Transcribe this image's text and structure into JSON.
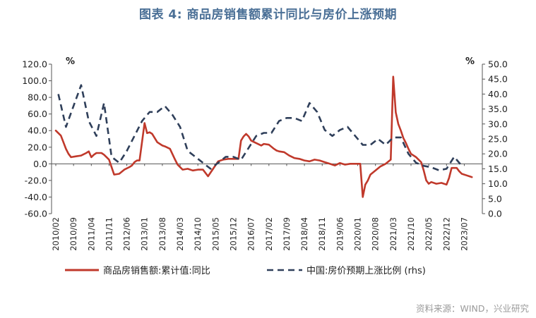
{
  "figure": {
    "title": "图表 4:  商品房销售额累计同比与房价上涨预期",
    "source": "资料来源：WIND，兴业研究"
  },
  "chart_data": {
    "type": "line",
    "left_axis": {
      "unit": "%",
      "ylim": [
        -60,
        120
      ],
      "ticks": [
        "-60.0",
        "-40.0",
        "-20.0",
        "0.0",
        "20.0",
        "40.0",
        "60.0",
        "80.0",
        "100.0",
        "120.0"
      ]
    },
    "right_axis": {
      "unit": "%",
      "ylim": [
        0,
        50
      ],
      "ticks": [
        "0.0",
        "5.0",
        "10.0",
        "15.0",
        "20.0",
        "25.0",
        "30.0",
        "35.0",
        "40.0",
        "45.0",
        "50.0"
      ]
    },
    "x_ticks": [
      "2010/02",
      "2010/09",
      "2011/04",
      "2011/11",
      "2012/06",
      "2013/01",
      "2013/08",
      "2014/03",
      "2014/10",
      "2015/05",
      "2015/12",
      "2016/07",
      "2017/02",
      "2017/09",
      "2018/04",
      "2018/11",
      "2019/06",
      "2020/01",
      "2020/08",
      "2021/03",
      "2021/10",
      "2022/05",
      "2022/12",
      "2023/07"
    ],
    "grid": false,
    "legend_position": "bottom",
    "series": [
      {
        "name": "商品房销售额:累计值:同比",
        "axis": "left",
        "color": "#c0392b",
        "style": "solid",
        "points": [
          [
            "2010/02",
            40
          ],
          [
            "2010/04",
            34
          ],
          [
            "2010/05",
            26
          ],
          [
            "2010/06",
            18
          ],
          [
            "2010/07",
            12
          ],
          [
            "2010/08",
            8
          ],
          [
            "2010/10",
            9
          ],
          [
            "2010/12",
            10
          ],
          [
            "2011/02",
            13
          ],
          [
            "2011/03",
            15
          ],
          [
            "2011/04",
            8
          ],
          [
            "2011/05",
            11
          ],
          [
            "2011/06",
            13
          ],
          [
            "2011/08",
            13
          ],
          [
            "2011/09",
            11
          ],
          [
            "2011/10",
            8
          ],
          [
            "2011/11",
            5
          ],
          [
            "2012/01",
            -13
          ],
          [
            "2012/03",
            -12
          ],
          [
            "2012/05",
            -7
          ],
          [
            "2012/07",
            -4
          ],
          [
            "2012/08",
            -2
          ],
          [
            "2012/09",
            2
          ],
          [
            "2012/10",
            4
          ],
          [
            "2012/11",
            4
          ],
          [
            "2013/01",
            49
          ],
          [
            "2013/02",
            37
          ],
          [
            "2013/03",
            38
          ],
          [
            "2013/04",
            36
          ],
          [
            "2013/05",
            31
          ],
          [
            "2013/06",
            26
          ],
          [
            "2013/08",
            22
          ],
          [
            "2013/09",
            21
          ],
          [
            "2013/11",
            18
          ],
          [
            "2014/01",
            5
          ],
          [
            "2014/02",
            -1
          ],
          [
            "2014/04",
            -7
          ],
          [
            "2014/06",
            -6
          ],
          [
            "2014/08",
            -8
          ],
          [
            "2014/10",
            -7
          ],
          [
            "2014/12",
            -7
          ],
          [
            "2015/02",
            -15
          ],
          [
            "2015/04",
            -6
          ],
          [
            "2015/06",
            3
          ],
          [
            "2015/08",
            5
          ],
          [
            "2015/10",
            6
          ],
          [
            "2015/12",
            6
          ],
          [
            "2016/02",
            6
          ],
          [
            "2016/03",
            28
          ],
          [
            "2016/04",
            33
          ],
          [
            "2016/05",
            36
          ],
          [
            "2016/06",
            33
          ],
          [
            "2016/07",
            28
          ],
          [
            "2016/09",
            25
          ],
          [
            "2016/11",
            22
          ],
          [
            "2016/12",
            24
          ],
          [
            "2017/02",
            23
          ],
          [
            "2017/04",
            18
          ],
          [
            "2017/05",
            16
          ],
          [
            "2017/06",
            15
          ],
          [
            "2017/08",
            14
          ],
          [
            "2017/10",
            10
          ],
          [
            "2017/12",
            7
          ],
          [
            "2018/02",
            6
          ],
          [
            "2018/04",
            4
          ],
          [
            "2018/06",
            3
          ],
          [
            "2018/08",
            5
          ],
          [
            "2018/10",
            4
          ],
          [
            "2018/12",
            2
          ],
          [
            "2019/02",
            0
          ],
          [
            "2019/04",
            -2
          ],
          [
            "2019/06",
            1
          ],
          [
            "2019/08",
            -1
          ],
          [
            "2019/10",
            0
          ],
          [
            "2019/12",
            0
          ],
          [
            "2020/02",
            0
          ],
          [
            "2020/03",
            -40
          ],
          [
            "2020/04",
            -25
          ],
          [
            "2020/05",
            -20
          ],
          [
            "2020/06",
            -13
          ],
          [
            "2020/08",
            -8
          ],
          [
            "2020/10",
            -3
          ],
          [
            "2020/12",
            0
          ],
          [
            "2021/02",
            5
          ],
          [
            "2021/03",
            105
          ],
          [
            "2021/04",
            62
          ],
          [
            "2021/05",
            48
          ],
          [
            "2021/06",
            40
          ],
          [
            "2021/07",
            31
          ],
          [
            "2021/08",
            25
          ],
          [
            "2021/09",
            18
          ],
          [
            "2021/10",
            12
          ],
          [
            "2021/12",
            8
          ],
          [
            "2022/02",
            2
          ],
          [
            "2022/03",
            -8
          ],
          [
            "2022/04",
            -20
          ],
          [
            "2022/05",
            -24
          ],
          [
            "2022/06",
            -22
          ],
          [
            "2022/08",
            -24
          ],
          [
            "2022/10",
            -23
          ],
          [
            "2022/12",
            -25
          ],
          [
            "2023/01",
            -17
          ],
          [
            "2023/02",
            -5
          ],
          [
            "2023/04",
            -5
          ],
          [
            "2023/05",
            -9
          ],
          [
            "2023/06",
            -12
          ],
          [
            "2023/08",
            -14
          ],
          [
            "2023/09",
            -15
          ],
          [
            "2023/10",
            -16
          ]
        ]
      },
      {
        "name": "中国:房价预期上涨比例 (rhs)",
        "axis": "right",
        "color": "#2f3f5a",
        "style": "dashed",
        "points": [
          [
            "2010/03",
            40
          ],
          [
            "2010/06",
            29
          ],
          [
            "2010/09",
            36
          ],
          [
            "2010/12",
            43
          ],
          [
            "2011/03",
            31
          ],
          [
            "2011/06",
            26
          ],
          [
            "2011/09",
            37
          ],
          [
            "2011/12",
            19
          ],
          [
            "2012/03",
            17
          ],
          [
            "2012/06",
            21
          ],
          [
            "2012/09",
            26
          ],
          [
            "2012/12",
            31
          ],
          [
            "2013/03",
            34
          ],
          [
            "2013/06",
            34
          ],
          [
            "2013/09",
            36
          ],
          [
            "2013/12",
            33
          ],
          [
            "2014/03",
            29
          ],
          [
            "2014/06",
            21
          ],
          [
            "2014/09",
            19
          ],
          [
            "2014/12",
            17
          ],
          [
            "2015/03",
            15
          ],
          [
            "2015/06",
            17
          ],
          [
            "2015/09",
            19
          ],
          [
            "2015/12",
            19
          ],
          [
            "2016/03",
            18
          ],
          [
            "2016/06",
            22
          ],
          [
            "2016/09",
            26
          ],
          [
            "2016/12",
            27
          ],
          [
            "2017/03",
            27
          ],
          [
            "2017/06",
            31
          ],
          [
            "2017/09",
            32
          ],
          [
            "2017/12",
            32
          ],
          [
            "2018/03",
            31
          ],
          [
            "2018/06",
            37
          ],
          [
            "2018/09",
            34
          ],
          [
            "2018/12",
            28
          ],
          [
            "2019/03",
            26
          ],
          [
            "2019/06",
            28
          ],
          [
            "2019/09",
            29
          ],
          [
            "2019/12",
            26
          ],
          [
            "2020/03",
            23
          ],
          [
            "2020/06",
            23
          ],
          [
            "2020/09",
            25
          ],
          [
            "2020/12",
            23
          ],
          [
            "2021/03",
            25.5
          ],
          [
            "2021/06",
            25.5
          ],
          [
            "2021/09",
            20
          ],
          [
            "2021/12",
            17
          ],
          [
            "2022/03",
            16
          ],
          [
            "2022/06",
            15.5
          ],
          [
            "2022/09",
            14.5
          ],
          [
            "2022/12",
            15
          ],
          [
            "2023/03",
            19
          ],
          [
            "2023/06",
            16
          ]
        ]
      }
    ]
  }
}
